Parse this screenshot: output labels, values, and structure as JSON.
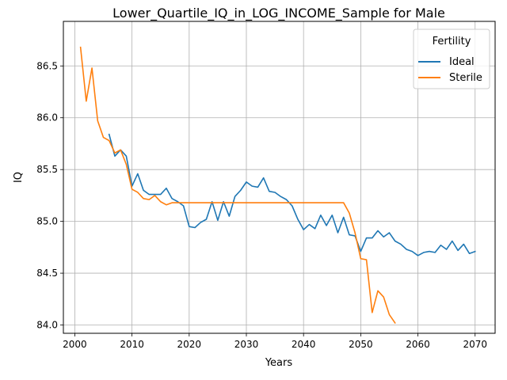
{
  "chart_data": {
    "type": "line",
    "title": "Lower_Quartile_IQ_in_LOG_INCOME_Sample for Male",
    "xlabel": "Years",
    "ylabel": "IQ",
    "xlim": [
      1998,
      2073.5
    ],
    "ylim": [
      83.92,
      86.93
    ],
    "x_ticks": [
      2000,
      2010,
      2020,
      2030,
      2040,
      2050,
      2060,
      2070
    ],
    "x_tick_labels": [
      "2000",
      "2010",
      "2020",
      "2030",
      "2040",
      "2050",
      "2060",
      "2070"
    ],
    "y_ticks": [
      84.0,
      84.5,
      85.0,
      85.5,
      86.0,
      86.5
    ],
    "y_tick_labels": [
      "84.0",
      "84.5",
      "85.0",
      "85.5",
      "86.0",
      "86.5"
    ],
    "grid": true,
    "legend": {
      "title": "Fertility",
      "position": "top-right"
    },
    "series": [
      {
        "name": "Ideal",
        "color": "#1f77b4",
        "x": [
          2006,
          2007,
          2008,
          2009,
          2010,
          2011,
          2012,
          2013,
          2014,
          2015,
          2016,
          2017,
          2018,
          2019,
          2020,
          2021,
          2022,
          2023,
          2024,
          2025,
          2026,
          2027,
          2028,
          2029,
          2030,
          2031,
          2032,
          2033,
          2034,
          2035,
          2036,
          2037,
          2038,
          2039,
          2040,
          2041,
          2042,
          2043,
          2044,
          2045,
          2046,
          2047,
          2048,
          2049,
          2050,
          2051,
          2052,
          2053,
          2054,
          2055,
          2056,
          2057,
          2058,
          2059,
          2060,
          2061,
          2062,
          2063,
          2064,
          2065,
          2066,
          2067,
          2068,
          2069,
          2070
        ],
        "y": [
          85.84,
          85.63,
          85.69,
          85.63,
          85.34,
          85.46,
          85.3,
          85.26,
          85.26,
          85.26,
          85.32,
          85.22,
          85.19,
          85.15,
          84.95,
          84.94,
          84.99,
          85.02,
          85.19,
          85.01,
          85.19,
          85.05,
          85.24,
          85.3,
          85.38,
          85.34,
          85.33,
          85.42,
          85.29,
          85.28,
          85.24,
          85.21,
          85.15,
          85.02,
          84.92,
          84.97,
          84.93,
          85.06,
          84.96,
          85.06,
          84.89,
          85.04,
          84.87,
          84.86,
          84.71,
          84.84,
          84.84,
          84.91,
          84.85,
          84.89,
          84.81,
          84.78,
          84.73,
          84.71,
          84.67,
          84.7,
          84.71,
          84.7,
          84.77,
          84.73,
          84.81,
          84.72,
          84.78,
          84.69,
          84.71
        ]
      },
      {
        "name": "Sterile",
        "color": "#ff7f0e",
        "x": [
          2001,
          2002,
          2003,
          2004,
          2005,
          2006,
          2007,
          2008,
          2009,
          2010,
          2011,
          2012,
          2013,
          2014,
          2015,
          2016,
          2017,
          2018,
          2019,
          2020,
          2021,
          2022,
          2023,
          2024,
          2025,
          2026,
          2027,
          2028,
          2029,
          2030,
          2031,
          2032,
          2033,
          2034,
          2035,
          2036,
          2037,
          2038,
          2039,
          2040,
          2041,
          2042,
          2043,
          2044,
          2045,
          2046,
          2047,
          2048,
          2049,
          2050,
          2051,
          2052,
          2053,
          2054,
          2055,
          2056
        ],
        "y": [
          86.68,
          86.16,
          86.48,
          85.97,
          85.81,
          85.78,
          85.66,
          85.69,
          85.55,
          85.31,
          85.28,
          85.22,
          85.21,
          85.25,
          85.19,
          85.16,
          85.18,
          85.18,
          85.18,
          85.18,
          85.18,
          85.18,
          85.18,
          85.18,
          85.18,
          85.18,
          85.18,
          85.18,
          85.18,
          85.18,
          85.18,
          85.18,
          85.18,
          85.18,
          85.18,
          85.18,
          85.18,
          85.18,
          85.18,
          85.18,
          85.18,
          85.18,
          85.18,
          85.18,
          85.18,
          85.18,
          85.18,
          85.08,
          84.89,
          84.64,
          84.63,
          84.12,
          84.33,
          84.27,
          84.1,
          84.02
        ]
      }
    ]
  }
}
